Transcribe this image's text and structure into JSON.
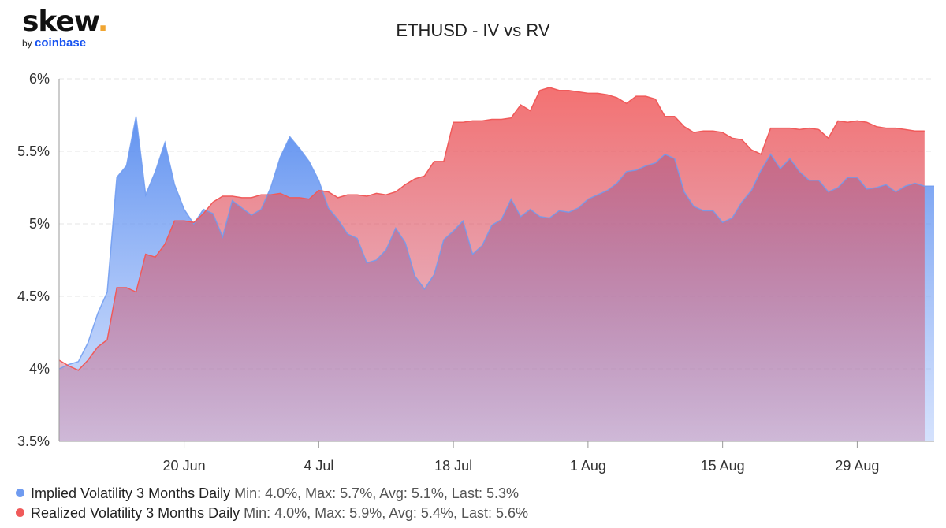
{
  "logo": {
    "main": "skew",
    "dot": ".",
    "by": "by",
    "brand": "coinbase"
  },
  "colors": {
    "iv": "#6f9bf0",
    "rv": "#f05a5a",
    "accent": "#f0a531",
    "brand": "#1652f0"
  },
  "chart_data": {
    "type": "area",
    "title": "ETHUSD - IV vs RV",
    "xlabel": "",
    "ylabel": "",
    "ylim": [
      3.5,
      6.0
    ],
    "y_ticks": [
      "3.5%",
      "4%",
      "4.5%",
      "5%",
      "5.5%",
      "6%"
    ],
    "y_tick_values": [
      3.5,
      4.0,
      4.5,
      5.0,
      5.5,
      6.0
    ],
    "x_ticks": [
      "20 Jun",
      "4 Jul",
      "18 Jul",
      "1 Aug",
      "15 Aug",
      "29 Aug"
    ],
    "x_tick_values": [
      "2020-06-20",
      "2020-07-04",
      "2020-07-18",
      "2020-08-01",
      "2020-08-15",
      "2020-08-29"
    ],
    "x_range": [
      "2020-06-07",
      "2020-09-06"
    ],
    "grid": true,
    "legend_position": "bottom-left",
    "series": [
      {
        "name": "Implied Volatility 3 Months Daily",
        "stats": "Min: 4.0%, Max: 5.7%, Avg: 5.1%, Last: 5.3%",
        "color": "#6f9bf0",
        "points": [
          [
            "2020-06-07",
            4.0
          ],
          [
            "2020-06-08",
            4.03
          ],
          [
            "2020-06-09",
            4.05
          ],
          [
            "2020-06-10",
            4.18
          ],
          [
            "2020-06-11",
            4.38
          ],
          [
            "2020-06-12",
            4.53
          ],
          [
            "2020-06-13",
            5.32
          ],
          [
            "2020-06-14",
            5.4
          ],
          [
            "2020-06-15",
            5.74
          ],
          [
            "2020-06-16",
            5.2
          ],
          [
            "2020-06-17",
            5.36
          ],
          [
            "2020-06-18",
            5.56
          ],
          [
            "2020-06-19",
            5.27
          ],
          [
            "2020-06-20",
            5.1
          ],
          [
            "2020-06-21",
            5.0
          ],
          [
            "2020-06-22",
            5.1
          ],
          [
            "2020-06-23",
            5.07
          ],
          [
            "2020-06-24",
            4.91
          ],
          [
            "2020-06-25",
            5.16
          ],
          [
            "2020-06-26",
            5.11
          ],
          [
            "2020-06-27",
            5.06
          ],
          [
            "2020-06-28",
            5.1
          ],
          [
            "2020-06-29",
            5.25
          ],
          [
            "2020-06-30",
            5.46
          ],
          [
            "2020-07-01",
            5.6
          ],
          [
            "2020-07-02",
            5.52
          ],
          [
            "2020-07-03",
            5.43
          ],
          [
            "2020-07-04",
            5.3
          ],
          [
            "2020-07-05",
            5.11
          ],
          [
            "2020-07-06",
            5.03
          ],
          [
            "2020-07-07",
            4.93
          ],
          [
            "2020-07-08",
            4.9
          ],
          [
            "2020-07-09",
            4.73
          ],
          [
            "2020-07-10",
            4.75
          ],
          [
            "2020-07-11",
            4.82
          ],
          [
            "2020-07-12",
            4.97
          ],
          [
            "2020-07-13",
            4.87
          ],
          [
            "2020-07-14",
            4.64
          ],
          [
            "2020-07-15",
            4.55
          ],
          [
            "2020-07-16",
            4.65
          ],
          [
            "2020-07-17",
            4.89
          ],
          [
            "2020-07-18",
            4.95
          ],
          [
            "2020-07-19",
            5.02
          ],
          [
            "2020-07-20",
            4.79
          ],
          [
            "2020-07-21",
            4.85
          ],
          [
            "2020-07-22",
            4.99
          ],
          [
            "2020-07-23",
            5.03
          ],
          [
            "2020-07-24",
            5.17
          ],
          [
            "2020-07-25",
            5.05
          ],
          [
            "2020-07-26",
            5.1
          ],
          [
            "2020-07-27",
            5.05
          ],
          [
            "2020-07-28",
            5.04
          ],
          [
            "2020-07-29",
            5.09
          ],
          [
            "2020-07-30",
            5.08
          ],
          [
            "2020-07-31",
            5.11
          ],
          [
            "2020-08-01",
            5.17
          ],
          [
            "2020-08-02",
            5.2
          ],
          [
            "2020-08-03",
            5.23
          ],
          [
            "2020-08-04",
            5.28
          ],
          [
            "2020-08-05",
            5.36
          ],
          [
            "2020-08-06",
            5.37
          ],
          [
            "2020-08-07",
            5.4
          ],
          [
            "2020-08-08",
            5.42
          ],
          [
            "2020-08-09",
            5.48
          ],
          [
            "2020-08-10",
            5.45
          ],
          [
            "2020-08-11",
            5.22
          ],
          [
            "2020-08-12",
            5.12
          ],
          [
            "2020-08-13",
            5.09
          ],
          [
            "2020-08-14",
            5.09
          ],
          [
            "2020-08-15",
            5.01
          ],
          [
            "2020-08-16",
            5.04
          ],
          [
            "2020-08-17",
            5.15
          ],
          [
            "2020-08-18",
            5.23
          ],
          [
            "2020-08-19",
            5.37
          ],
          [
            "2020-08-20",
            5.48
          ],
          [
            "2020-08-21",
            5.38
          ],
          [
            "2020-08-22",
            5.45
          ],
          [
            "2020-08-23",
            5.36
          ],
          [
            "2020-08-24",
            5.3
          ],
          [
            "2020-08-25",
            5.3
          ],
          [
            "2020-08-26",
            5.22
          ],
          [
            "2020-08-27",
            5.25
          ],
          [
            "2020-08-28",
            5.32
          ],
          [
            "2020-08-29",
            5.32
          ],
          [
            "2020-08-30",
            5.24
          ],
          [
            "2020-08-31",
            5.25
          ],
          [
            "2020-09-01",
            5.27
          ],
          [
            "2020-09-02",
            5.22
          ],
          [
            "2020-09-03",
            5.26
          ],
          [
            "2020-09-04",
            5.28
          ],
          [
            "2020-09-05",
            5.26
          ]
        ]
      },
      {
        "name": "Realized Volatility 3 Months Daily",
        "stats": "Min: 4.0%, Max: 5.9%, Avg: 5.4%, Last: 5.6%",
        "color": "#f05a5a",
        "points": [
          [
            "2020-06-07",
            4.06
          ],
          [
            "2020-06-08",
            4.02
          ],
          [
            "2020-06-09",
            3.99
          ],
          [
            "2020-06-10",
            4.06
          ],
          [
            "2020-06-11",
            4.15
          ],
          [
            "2020-06-12",
            4.2
          ],
          [
            "2020-06-13",
            4.56
          ],
          [
            "2020-06-14",
            4.56
          ],
          [
            "2020-06-15",
            4.53
          ],
          [
            "2020-06-16",
            4.79
          ],
          [
            "2020-06-17",
            4.77
          ],
          [
            "2020-06-18",
            4.86
          ],
          [
            "2020-06-19",
            5.02
          ],
          [
            "2020-06-20",
            5.02
          ],
          [
            "2020-06-21",
            5.01
          ],
          [
            "2020-06-22",
            5.07
          ],
          [
            "2020-06-23",
            5.15
          ],
          [
            "2020-06-24",
            5.19
          ],
          [
            "2020-06-25",
            5.19
          ],
          [
            "2020-06-26",
            5.18
          ],
          [
            "2020-06-27",
            5.18
          ],
          [
            "2020-06-28",
            5.2
          ],
          [
            "2020-06-29",
            5.2
          ],
          [
            "2020-06-30",
            5.21
          ],
          [
            "2020-07-01",
            5.18
          ],
          [
            "2020-07-02",
            5.18
          ],
          [
            "2020-07-03",
            5.17
          ],
          [
            "2020-07-04",
            5.23
          ],
          [
            "2020-07-05",
            5.22
          ],
          [
            "2020-07-06",
            5.18
          ],
          [
            "2020-07-07",
            5.2
          ],
          [
            "2020-07-08",
            5.2
          ],
          [
            "2020-07-09",
            5.19
          ],
          [
            "2020-07-10",
            5.21
          ],
          [
            "2020-07-11",
            5.2
          ],
          [
            "2020-07-12",
            5.22
          ],
          [
            "2020-07-13",
            5.27
          ],
          [
            "2020-07-14",
            5.31
          ],
          [
            "2020-07-15",
            5.33
          ],
          [
            "2020-07-16",
            5.43
          ],
          [
            "2020-07-17",
            5.43
          ],
          [
            "2020-07-18",
            5.7
          ],
          [
            "2020-07-19",
            5.7
          ],
          [
            "2020-07-20",
            5.71
          ],
          [
            "2020-07-21",
            5.71
          ],
          [
            "2020-07-22",
            5.72
          ],
          [
            "2020-07-23",
            5.72
          ],
          [
            "2020-07-24",
            5.73
          ],
          [
            "2020-07-25",
            5.82
          ],
          [
            "2020-07-26",
            5.78
          ],
          [
            "2020-07-27",
            5.92
          ],
          [
            "2020-07-28",
            5.94
          ],
          [
            "2020-07-29",
            5.92
          ],
          [
            "2020-07-30",
            5.92
          ],
          [
            "2020-07-31",
            5.91
          ],
          [
            "2020-08-01",
            5.9
          ],
          [
            "2020-08-02",
            5.9
          ],
          [
            "2020-08-03",
            5.89
          ],
          [
            "2020-08-04",
            5.87
          ],
          [
            "2020-08-05",
            5.83
          ],
          [
            "2020-08-06",
            5.88
          ],
          [
            "2020-08-07",
            5.88
          ],
          [
            "2020-08-08",
            5.86
          ],
          [
            "2020-08-09",
            5.74
          ],
          [
            "2020-08-10",
            5.74
          ],
          [
            "2020-08-11",
            5.67
          ],
          [
            "2020-08-12",
            5.63
          ],
          [
            "2020-08-13",
            5.64
          ],
          [
            "2020-08-14",
            5.64
          ],
          [
            "2020-08-15",
            5.63
          ],
          [
            "2020-08-16",
            5.59
          ],
          [
            "2020-08-17",
            5.58
          ],
          [
            "2020-08-18",
            5.51
          ],
          [
            "2020-08-19",
            5.48
          ],
          [
            "2020-08-20",
            5.66
          ],
          [
            "2020-08-21",
            5.66
          ],
          [
            "2020-08-22",
            5.66
          ],
          [
            "2020-08-23",
            5.65
          ],
          [
            "2020-08-24",
            5.66
          ],
          [
            "2020-08-25",
            5.65
          ],
          [
            "2020-08-26",
            5.59
          ],
          [
            "2020-08-27",
            5.71
          ],
          [
            "2020-08-28",
            5.7
          ],
          [
            "2020-08-29",
            5.71
          ],
          [
            "2020-08-30",
            5.7
          ],
          [
            "2020-08-31",
            5.67
          ],
          [
            "2020-09-01",
            5.66
          ],
          [
            "2020-09-02",
            5.66
          ],
          [
            "2020-09-03",
            5.65
          ],
          [
            "2020-09-04",
            5.64
          ],
          [
            "2020-09-05",
            5.64
          ]
        ]
      }
    ]
  }
}
